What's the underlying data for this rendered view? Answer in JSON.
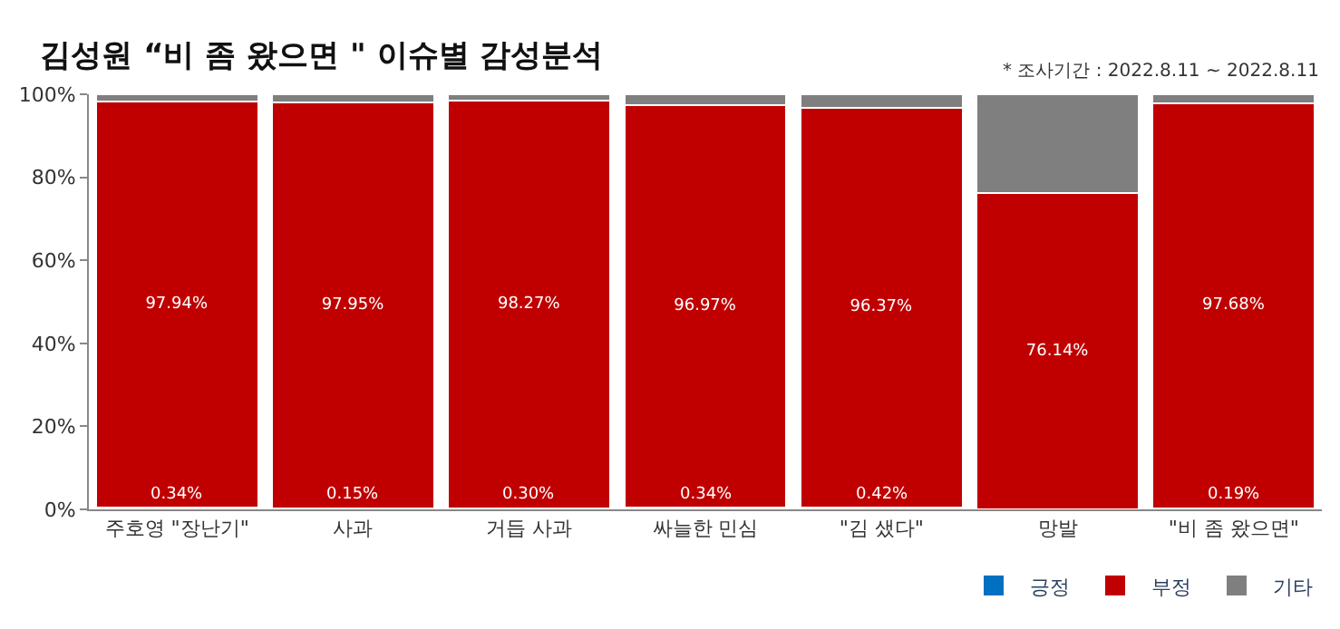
{
  "chart_data": {
    "type": "bar",
    "stacked": true,
    "title": "김성원 “비 좀 왔으면 \" 이슈별 감성분석",
    "annotations": [
      "* 조사기간 : 2022.8.11 ~ 2022.8.11"
    ],
    "categories": [
      "주호영 \"장난기\"",
      "사과",
      "거듭 사과",
      "싸늘한 민심",
      "\"김 샜다\"",
      "망발",
      "\"비 좀 왔으면\""
    ],
    "series": [
      {
        "name": "긍정",
        "color": "#0070c0",
        "values": [
          0.34,
          0.15,
          0.3,
          0.34,
          0.42,
          0,
          0.19
        ],
        "value_labels": [
          "0.34%",
          "0.15%",
          "0.30%",
          "0.34%",
          "0.42%",
          null,
          "0.19%"
        ]
      },
      {
        "name": "부정",
        "color": "#c00000",
        "values": [
          97.94,
          97.95,
          98.27,
          96.97,
          96.37,
          76.14,
          97.68
        ],
        "value_labels": [
          "97.94%",
          "97.95%",
          "98.27%",
          "96.97%",
          "96.37%",
          "76.14%",
          "97.68%"
        ]
      },
      {
        "name": "기타",
        "color": "#7f7f7f",
        "values": [
          1.7,
          1.9,
          1.4,
          2.7,
          3.2,
          23.9,
          2.1
        ]
      }
    ],
    "ylim": [
      0,
      100
    ],
    "yticks": [
      {
        "value": 0,
        "label": "0%"
      },
      {
        "value": 20,
        "label": "20%"
      },
      {
        "value": 40,
        "label": "40%"
      },
      {
        "value": 60,
        "label": "60%"
      },
      {
        "value": 80,
        "label": "80%"
      },
      {
        "value": 100,
        "label": "100%"
      }
    ],
    "legend": "bottom right"
  }
}
